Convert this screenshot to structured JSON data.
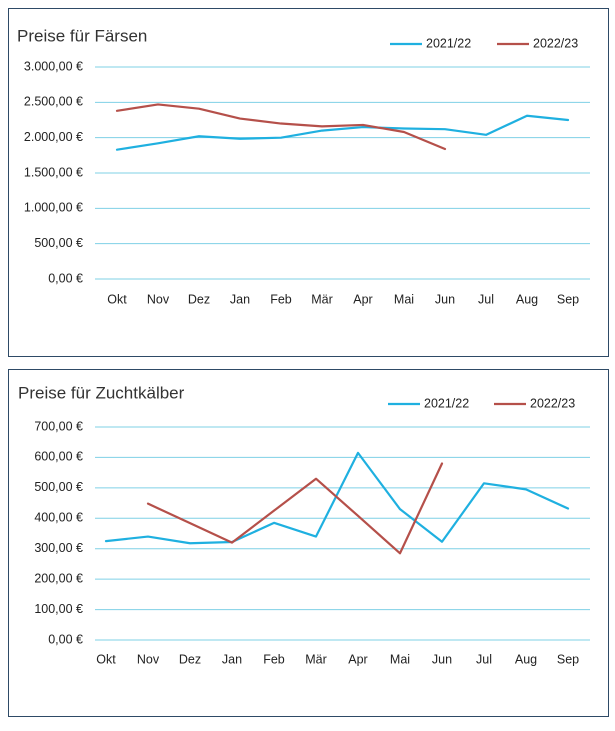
{
  "chart_data": [
    {
      "type": "line",
      "title": "Preise für Färsen",
      "categories": [
        "Okt",
        "Nov",
        "Dez",
        "Jan",
        "Feb",
        "Mär",
        "Apr",
        "Mai",
        "Jun",
        "Jul",
        "Aug",
        "Sep"
      ],
      "series": [
        {
          "name": "2021/22",
          "color": "#1fb0e0",
          "values": [
            1830,
            1920,
            2020,
            1985,
            2000,
            2100,
            2150,
            2130,
            2120,
            2040,
            2310,
            2250
          ]
        },
        {
          "name": "2022/23",
          "color": "#b5504a",
          "values": [
            2380,
            2470,
            2410,
            2270,
            2200,
            2160,
            2180,
            2080,
            1840,
            null,
            null,
            null
          ]
        }
      ],
      "ylim": [
        0,
        3000
      ],
      "yticks": [
        {
          "value": 0,
          "label": "0,00 €"
        },
        {
          "value": 500,
          "label": "500,00 €"
        },
        {
          "value": 1000,
          "label": "1.000,00 €"
        },
        {
          "value": 1500,
          "label": "1.500,00 €"
        },
        {
          "value": 2000,
          "label": "2.000,00 €"
        },
        {
          "value": 2500,
          "label": "2.500,00 €"
        },
        {
          "value": 3000,
          "label": "3.000,00 €"
        }
      ],
      "grid": true,
      "legend": "top-right"
    },
    {
      "type": "line",
      "title": "Preise für Zuchtkälber",
      "categories": [
        "Okt",
        "Nov",
        "Dez",
        "Jan",
        "Feb",
        "Mär",
        "Apr",
        "Mai",
        "Jun",
        "Jul",
        "Aug",
        "Sep"
      ],
      "series": [
        {
          "name": "2021/22",
          "color": "#1fb0e0",
          "values": [
            325,
            340,
            318,
            322,
            385,
            340,
            615,
            430,
            323,
            515,
            495,
            432
          ]
        },
        {
          "name": "2022/23",
          "color": "#b5504a",
          "values": [
            null,
            448,
            384,
            320,
            425,
            530,
            408,
            285,
            580,
            null,
            null,
            null
          ]
        }
      ],
      "ylim": [
        0,
        700
      ],
      "yticks": [
        {
          "value": 0,
          "label": "0,00 €"
        },
        {
          "value": 100,
          "label": "100,00 €"
        },
        {
          "value": 200,
          "label": "200,00 €"
        },
        {
          "value": 300,
          "label": "300,00 €"
        },
        {
          "value": 400,
          "label": "400,00 €"
        },
        {
          "value": 500,
          "label": "500,00 €"
        },
        {
          "value": 600,
          "label": "600,00 €"
        },
        {
          "value": 700,
          "label": "700,00 €"
        }
      ],
      "grid": true,
      "legend": "top-right"
    }
  ]
}
